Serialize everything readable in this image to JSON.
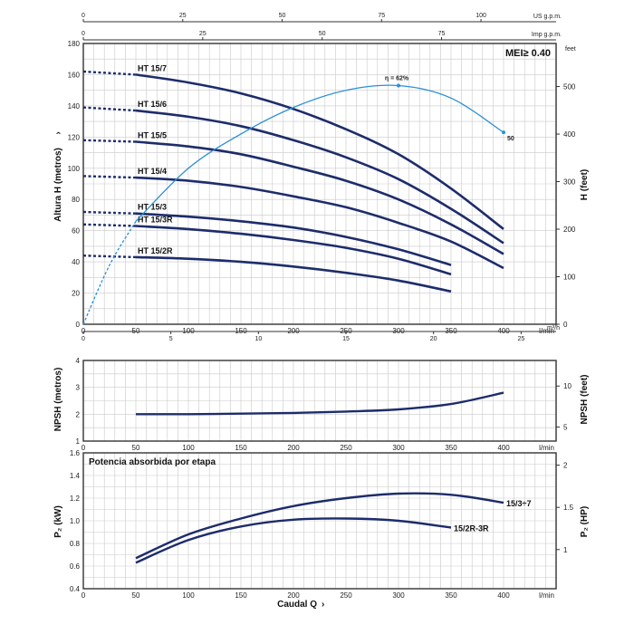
{
  "chart_data": [
    {
      "type": "line",
      "x_unit": "l/min",
      "x_ticks": [
        0,
        50,
        100,
        150,
        200,
        250,
        300,
        350,
        400
      ],
      "xlim": [
        0,
        450
      ],
      "top_scales": [
        {
          "unit": "US g.p.m.",
          "ticks": [
            0,
            25,
            50,
            75,
            100
          ],
          "factor": 3.785
        },
        {
          "unit": "Imp g.p.m.",
          "ticks": [
            0,
            25,
            50,
            75
          ],
          "factor": 4.546
        }
      ],
      "bottom_scale": {
        "unit": "m³/h",
        "ticks": [
          0,
          5,
          10,
          15,
          20,
          25
        ],
        "factor": 16.667
      },
      "ylabel": "Altura H (metros)",
      "ylim": [
        0,
        180
      ],
      "y_ticks": [
        0,
        20,
        40,
        60,
        80,
        100,
        120,
        140,
        160,
        180
      ],
      "y2label": "H (feet)",
      "y2_unit": "feet",
      "y2_ticks": [
        0,
        100,
        200,
        300,
        400,
        500
      ],
      "y2_factor": 3.2808,
      "mei_label": "MEI≥ 0.40",
      "series": [
        {
          "name": "HT 15/7",
          "x": [
            0,
            50,
            100,
            150,
            200,
            250,
            300,
            350,
            400
          ],
          "values": [
            162,
            160,
            155,
            148,
            138,
            125,
            109,
            87,
            61
          ]
        },
        {
          "name": "HT 15/6",
          "x": [
            0,
            50,
            100,
            150,
            200,
            250,
            300,
            350,
            400
          ],
          "values": [
            139,
            137,
            133,
            127,
            118,
            107,
            93,
            74,
            52
          ]
        },
        {
          "name": "HT 15/5",
          "x": [
            0,
            50,
            100,
            150,
            200,
            250,
            300,
            350,
            400
          ],
          "values": [
            118,
            117,
            114,
            109,
            101,
            92,
            80,
            64,
            45
          ]
        },
        {
          "name": "HT 15/4",
          "x": [
            0,
            50,
            100,
            150,
            200,
            250,
            300,
            350,
            400
          ],
          "values": [
            95,
            94,
            92,
            88,
            82,
            75,
            65,
            53,
            36
          ]
        },
        {
          "name": "HT 15/3",
          "x": [
            0,
            50,
            100,
            150,
            200,
            250,
            300,
            350
          ],
          "values": [
            72,
            71,
            69,
            66,
            62,
            56,
            48,
            38
          ]
        },
        {
          "name": "HT 15/3R",
          "x": [
            0,
            50,
            100,
            150,
            200,
            250,
            300,
            350
          ],
          "values": [
            64,
            63,
            61,
            58,
            54,
            49,
            42,
            32
          ]
        },
        {
          "name": "HT 15/2R",
          "x": [
            0,
            50,
            100,
            150,
            200,
            250,
            300,
            350
          ],
          "values": [
            44,
            43,
            42,
            40,
            37,
            33,
            28,
            21
          ]
        }
      ],
      "efficiency": {
        "x": [
          0,
          25,
          50,
          100,
          150,
          200,
          250,
          300,
          350,
          400
        ],
        "values": [
          0,
          38,
          66,
          100,
          122,
          139,
          150,
          153,
          145,
          123
        ],
        "peak_label": "η = 62%",
        "peak_x": 300,
        "end_label": "50"
      }
    },
    {
      "type": "line",
      "ylabel": "NPSH (metros)",
      "ylim": [
        1,
        4
      ],
      "y_ticks": [
        1,
        2,
        3,
        4
      ],
      "y2label": "NPSH (feet)",
      "y2_ticks": [
        5,
        10
      ],
      "y2_factor": 3.2808,
      "x_ticks": [
        0,
        50,
        100,
        150,
        200,
        250,
        300,
        350,
        400
      ],
      "xlim": [
        0,
        450
      ],
      "series": [
        {
          "x": [
            50,
            100,
            150,
            200,
            250,
            300,
            350,
            400
          ],
          "values": [
            2.0,
            2.0,
            2.02,
            2.05,
            2.1,
            2.18,
            2.38,
            2.8
          ]
        }
      ]
    },
    {
      "type": "line",
      "title": "Potencia absorbida por etapa",
      "ylabel": "P₂ (kW)",
      "ylim": [
        0.4,
        1.6
      ],
      "y_ticks": [
        0.4,
        0.6,
        0.8,
        1.0,
        1.2,
        1.4,
        1.6
      ],
      "y2label": "P₂ (HP)",
      "y2_ticks": [
        1,
        1.5,
        2
      ],
      "y2_factor": 1.341,
      "x_ticks": [
        0,
        50,
        100,
        150,
        200,
        250,
        300,
        350,
        400
      ],
      "xlim": [
        0,
        450
      ],
      "xlabel": "Caudal Q",
      "series": [
        {
          "name": "15/3÷7",
          "x": [
            50,
            100,
            150,
            200,
            250,
            300,
            350,
            400
          ],
          "values": [
            0.67,
            0.88,
            1.02,
            1.13,
            1.2,
            1.24,
            1.23,
            1.16
          ]
        },
        {
          "name": "15/2R-3R",
          "x": [
            50,
            100,
            150,
            200,
            250,
            300,
            350
          ],
          "values": [
            0.63,
            0.83,
            0.95,
            1.01,
            1.02,
            1.0,
            0.94
          ]
        }
      ]
    }
  ]
}
